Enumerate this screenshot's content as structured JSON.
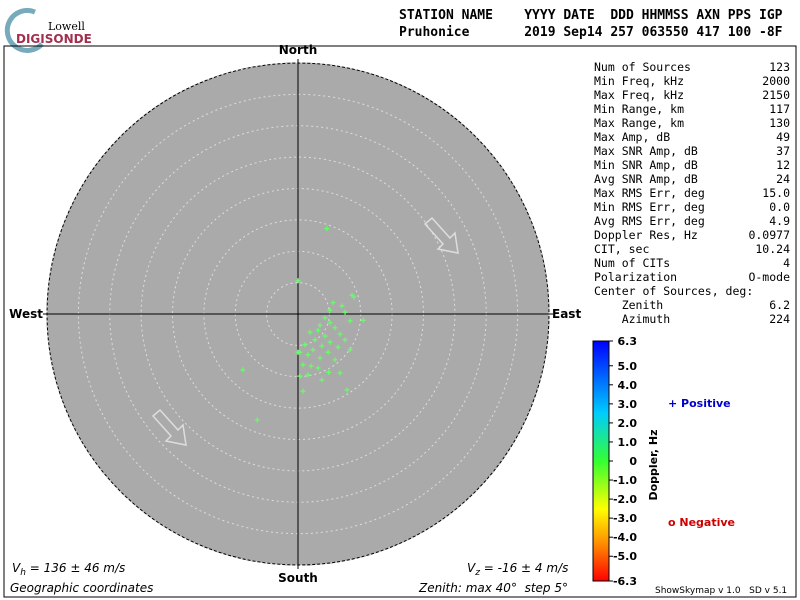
{
  "header": {
    "logo_top": "Lowell",
    "logo_bottom": "DIGISONDE",
    "columns": "STATION NAME    YYYY DATE  DDD HHMMSS AXN PPS IGP",
    "values": "Pruhonice       2019 Sep14 257 063550 417 100 -8F"
  },
  "stats": [
    [
      "Num of Sources",
      "123"
    ],
    [
      "Min Freq, kHz",
      "2000"
    ],
    [
      "Max Freq, kHz",
      "2150"
    ],
    [
      "Min Range, km",
      "117"
    ],
    [
      "Max Range, km",
      "130"
    ],
    [
      "Max Amp, dB",
      "49"
    ],
    [
      "Max SNR Amp, dB",
      "37"
    ],
    [
      "Min SNR Amp, dB",
      "12"
    ],
    [
      "Avg SNR Amp, dB",
      "24"
    ],
    [
      "Max RMS Err, deg",
      "15.0"
    ],
    [
      "Min RMS Err, deg",
      "0.0"
    ],
    [
      "Avg RMS Err, deg",
      "4.9"
    ],
    [
      "Doppler Res, Hz",
      "0.0977"
    ],
    [
      "CIT, sec",
      "10.24"
    ],
    [
      "Num of CITs",
      "4"
    ],
    [
      "Polarization",
      "O-mode"
    ],
    [
      "Center of Sources, deg:",
      ""
    ],
    [
      "    Zenith",
      "6.2"
    ],
    [
      "    Azimuth",
      "224"
    ]
  ],
  "chart_data": {
    "type": "skymap",
    "directions": {
      "north": "North",
      "south": "South",
      "east": "East",
      "west": "West"
    },
    "xlim": [
      -40,
      40
    ],
    "ylim": [
      -40,
      40
    ],
    "rings": [
      5,
      10,
      15,
      20,
      25,
      30,
      35,
      40
    ],
    "color": "#66ff66",
    "x": [
      4.6,
      0,
      8.6,
      8.9,
      5.6,
      7.0,
      5.1,
      7.5,
      10.4,
      8.3,
      4.3,
      3.5,
      5.1,
      5.9,
      3.2,
      1.9,
      6.7,
      4.3,
      2.7,
      7.5,
      5.1,
      1.1,
      3.8,
      6.4,
      2.4,
      0.3,
      4.8,
      1.6,
      3.5,
      5.9,
      8.3,
      0.8,
      3.2,
      4.9,
      1.6,
      6.7,
      0.3,
      -8.8,
      3.8,
      0.8,
      7.8,
      -6.5,
      0,
      2.1
    ],
    "y": [
      13.6,
      5.3,
      3.0,
      2.7,
      1.8,
      1.3,
      0.6,
      0.3,
      -1.0,
      -1.1,
      -0.6,
      -1.8,
      -1.4,
      -2.2,
      -2.6,
      -2.9,
      -3.2,
      -3.5,
      -4.1,
      -4.1,
      -4.5,
      -4.9,
      -5.1,
      -5.3,
      -5.7,
      -6.1,
      -6.1,
      -6.5,
      -7.0,
      -7.3,
      -5.7,
      -8.1,
      -8.6,
      -9.3,
      -9.7,
      -9.4,
      -9.9,
      -8.9,
      -10.5,
      -12.3,
      -12.1,
      -16.9,
      -6.1,
      -8.3
    ],
    "colorbar": {
      "label": "Doppler, Hz",
      "lim": [
        -6.3,
        6.3
      ],
      "ticks": [
        6.3,
        {
          "value": 5,
          "label": "5.0"
        },
        {
          "value": 4,
          "label": "4.0"
        },
        {
          "value": 3,
          "label": "3.0"
        },
        {
          "value": 2,
          "label": "2.0"
        },
        {
          "value": 1,
          "label": "1.0"
        },
        0,
        {
          "value": -1,
          "label": "-1.0"
        },
        {
          "value": -2,
          "label": "-2.0"
        },
        {
          "value": -3,
          "label": "-3.0"
        },
        {
          "value": -4,
          "label": "-4.0"
        },
        {
          "value": -5,
          "label": "-5.0"
        },
        -6.3
      ]
    },
    "legend": {
      "positive": "+ Positive",
      "negative": "o Negative"
    },
    "vh": {
      "symbol": "V",
      "sub": "h",
      "text": " = 136 ± 46 m/s"
    },
    "vz": {
      "symbol": "V",
      "sub": "z",
      "text": " = -16 ± 4 m/s"
    },
    "footer_left": "Geographic coordinates",
    "footer_mid": "Zenith: max 40°  step 5°",
    "footer_right": "ShowSkymap v 1.0   SD v 5.1"
  }
}
